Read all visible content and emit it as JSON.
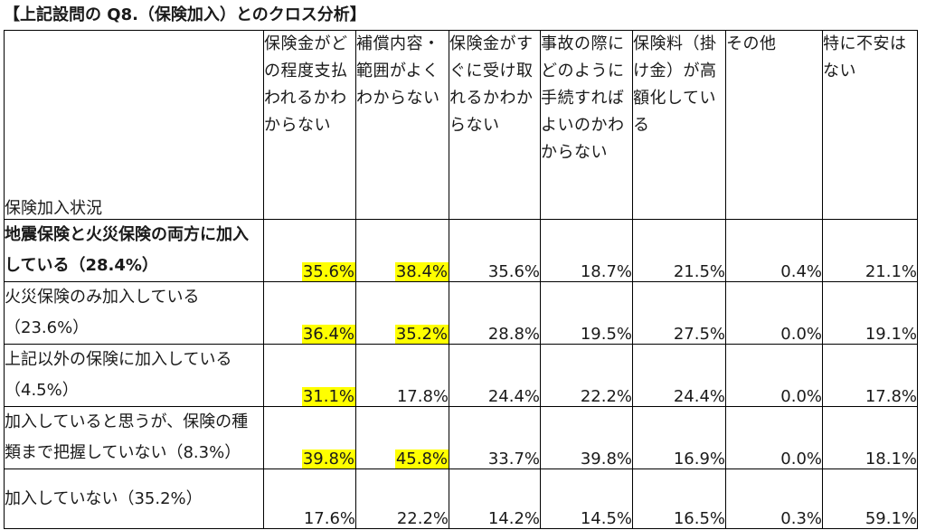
{
  "title": "【上記設問の Q8.（保険加入）とのクロス分析】",
  "corner_label": "保険加入状況",
  "columns": [
    "保険金がどの程度支払われるかわからない",
    "補償内容・範囲がよくわからない",
    "保険金がすぐに受け取れるかわからない",
    "事故の際にどのように手続すればよいのかわからない",
    "保険料（掛け金）が高額化している",
    "その他",
    "特に不安はない"
  ],
  "rows": [
    {
      "label": "地震保険と火災保険の両方に加入している（28.4%）",
      "values": [
        "35.6%",
        "38.4%",
        "35.6%",
        "18.7%",
        "21.5%",
        "0.4%",
        "21.1%"
      ]
    },
    {
      "label": "火災保険のみ加入している（23.6%）",
      "values": [
        "36.4%",
        "35.2%",
        "28.8%",
        "19.5%",
        "27.5%",
        "0.0%",
        "19.1%"
      ]
    },
    {
      "label": "上記以外の保険に加入している（4.5%）",
      "values": [
        "31.1%",
        "17.8%",
        "24.4%",
        "22.2%",
        "24.4%",
        "0.0%",
        "17.8%"
      ]
    },
    {
      "label": "加入していると思うが、保険の種類まで把握していない（8.3%）",
      "values": [
        "39.8%",
        "45.8%",
        "33.7%",
        "39.8%",
        "16.9%",
        "0.0%",
        "18.1%"
      ]
    },
    {
      "label": "加入していない（35.2%）",
      "values": [
        "17.6%",
        "22.2%",
        "14.2%",
        "14.5%",
        "16.5%",
        "0.3%",
        "59.1%"
      ]
    }
  ],
  "highlight_color": "#ffff00",
  "highlighted_cells": [
    [
      0,
      0
    ],
    [
      0,
      1
    ],
    [
      1,
      0
    ],
    [
      1,
      1
    ],
    [
      2,
      0
    ],
    [
      3,
      0
    ],
    [
      3,
      1
    ]
  ]
}
